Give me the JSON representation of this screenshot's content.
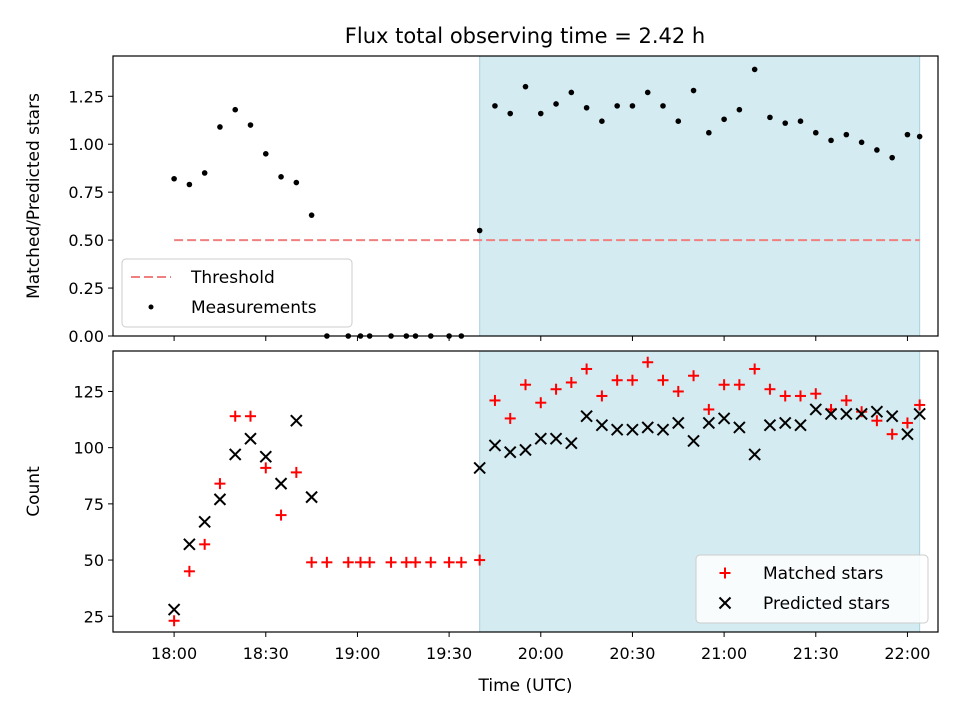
{
  "title": "Flux total observing time = 2.42 h",
  "colors": {
    "shade": "#d4ebf1",
    "shade_edge": "#a9d3e0",
    "threshold": "#f08080",
    "measurements": "#000000",
    "matched": "#ff0000",
    "predicted": "#000000"
  },
  "chart_data": [
    {
      "type": "scatter",
      "panel": "top",
      "ylabel": "Matched/Predicted stars",
      "ylim": [
        0,
        1.46
      ],
      "yticks": [
        0,
        0.25,
        0.5,
        0.75,
        1.0,
        1.25
      ],
      "ytick_labels": [
        "0.00",
        "0.25",
        "0.50",
        "0.75",
        "1.00",
        "1.25"
      ],
      "xlim": [
        "17:40",
        "22:10"
      ],
      "xticks": [
        "18:00",
        "18:30",
        "19:00",
        "19:30",
        "20:00",
        "20:30",
        "21:00",
        "21:30",
        "22:00"
      ],
      "shaded_region": [
        "19:40",
        "22:04"
      ],
      "legend_position": "lower-left",
      "threshold": {
        "name": "Threshold",
        "value": 0.5,
        "from": "18:00",
        "to": "22:04"
      },
      "series": [
        {
          "name": "Measurements",
          "marker": "dot",
          "points": [
            [
              "18:00",
              0.82
            ],
            [
              "18:05",
              0.79
            ],
            [
              "18:10",
              0.85
            ],
            [
              "18:15",
              1.09
            ],
            [
              "18:20",
              1.18
            ],
            [
              "18:25",
              1.1
            ],
            [
              "18:30",
              0.95
            ],
            [
              "18:35",
              0.83
            ],
            [
              "18:40",
              0.8
            ],
            [
              "18:45",
              0.63
            ],
            [
              "18:50",
              0.0
            ],
            [
              "18:57",
              0.0
            ],
            [
              "19:01",
              0.0
            ],
            [
              "19:04",
              0.0
            ],
            [
              "19:11",
              0.0
            ],
            [
              "19:16",
              0.0
            ],
            [
              "19:19",
              0.0
            ],
            [
              "19:24",
              0.0
            ],
            [
              "19:30",
              0.0
            ],
            [
              "19:34",
              0.0
            ],
            [
              "19:40",
              0.55
            ],
            [
              "19:45",
              1.2
            ],
            [
              "19:50",
              1.16
            ],
            [
              "19:55",
              1.3
            ],
            [
              "20:00",
              1.16
            ],
            [
              "20:05",
              1.21
            ],
            [
              "20:10",
              1.27
            ],
            [
              "20:15",
              1.19
            ],
            [
              "20:20",
              1.12
            ],
            [
              "20:25",
              1.2
            ],
            [
              "20:30",
              1.2
            ],
            [
              "20:35",
              1.27
            ],
            [
              "20:40",
              1.2
            ],
            [
              "20:45",
              1.12
            ],
            [
              "20:50",
              1.28
            ],
            [
              "20:55",
              1.06
            ],
            [
              "21:00",
              1.13
            ],
            [
              "21:05",
              1.18
            ],
            [
              "21:10",
              1.39
            ],
            [
              "21:15",
              1.14
            ],
            [
              "21:20",
              1.11
            ],
            [
              "21:25",
              1.12
            ],
            [
              "21:30",
              1.06
            ],
            [
              "21:35",
              1.02
            ],
            [
              "21:40",
              1.05
            ],
            [
              "21:45",
              1.01
            ],
            [
              "21:50",
              0.97
            ],
            [
              "21:55",
              0.93
            ],
            [
              "22:00",
              1.05
            ],
            [
              "22:04",
              1.04
            ]
          ]
        }
      ]
    },
    {
      "type": "scatter",
      "panel": "bottom",
      "ylabel": "Count",
      "xlabel": "Time (UTC)",
      "ylim": [
        18,
        143
      ],
      "yticks": [
        25,
        50,
        75,
        100,
        125
      ],
      "ytick_labels": [
        "25",
        "50",
        "75",
        "100",
        "125"
      ],
      "xlim": [
        "17:40",
        "22:10"
      ],
      "xticks": [
        "18:00",
        "18:30",
        "19:00",
        "19:30",
        "20:00",
        "20:30",
        "21:00",
        "21:30",
        "22:00"
      ],
      "shaded_region": [
        "19:40",
        "22:04"
      ],
      "legend_position": "lower-right",
      "series": [
        {
          "name": "Matched stars",
          "marker": "plus",
          "points": [
            [
              "18:00",
              23
            ],
            [
              "18:05",
              45
            ],
            [
              "18:10",
              57
            ],
            [
              "18:15",
              84
            ],
            [
              "18:20",
              114
            ],
            [
              "18:25",
              114
            ],
            [
              "18:30",
              91
            ],
            [
              "18:35",
              70
            ],
            [
              "18:40",
              89
            ],
            [
              "18:45",
              49
            ],
            [
              "18:50",
              49
            ],
            [
              "18:57",
              49
            ],
            [
              "19:01",
              49
            ],
            [
              "19:04",
              49
            ],
            [
              "19:11",
              49
            ],
            [
              "19:16",
              49
            ],
            [
              "19:19",
              49
            ],
            [
              "19:24",
              49
            ],
            [
              "19:30",
              49
            ],
            [
              "19:34",
              49
            ],
            [
              "19:40",
              50
            ],
            [
              "19:45",
              121
            ],
            [
              "19:50",
              113
            ],
            [
              "19:55",
              128
            ],
            [
              "20:00",
              120
            ],
            [
              "20:05",
              126
            ],
            [
              "20:10",
              129
            ],
            [
              "20:15",
              135
            ],
            [
              "20:20",
              123
            ],
            [
              "20:25",
              130
            ],
            [
              "20:30",
              130
            ],
            [
              "20:35",
              138
            ],
            [
              "20:40",
              130
            ],
            [
              "20:45",
              125
            ],
            [
              "20:50",
              132
            ],
            [
              "20:55",
              117
            ],
            [
              "21:00",
              128
            ],
            [
              "21:05",
              128
            ],
            [
              "21:10",
              135
            ],
            [
              "21:15",
              126
            ],
            [
              "21:20",
              123
            ],
            [
              "21:25",
              123
            ],
            [
              "21:30",
              124
            ],
            [
              "21:35",
              117
            ],
            [
              "21:40",
              121
            ],
            [
              "21:45",
              116
            ],
            [
              "21:50",
              112
            ],
            [
              "21:55",
              106
            ],
            [
              "22:00",
              111
            ],
            [
              "22:04",
              119
            ]
          ]
        },
        {
          "name": "Predicted stars",
          "marker": "x",
          "points": [
            [
              "18:00",
              28
            ],
            [
              "18:05",
              57
            ],
            [
              "18:10",
              67
            ],
            [
              "18:15",
              77
            ],
            [
              "18:20",
              97
            ],
            [
              "18:25",
              104
            ],
            [
              "18:30",
              96
            ],
            [
              "18:35",
              84
            ],
            [
              "18:40",
              112
            ],
            [
              "18:45",
              78
            ],
            [
              "19:40",
              91
            ],
            [
              "19:45",
              101
            ],
            [
              "19:50",
              98
            ],
            [
              "19:55",
              99
            ],
            [
              "20:00",
              104
            ],
            [
              "20:05",
              104
            ],
            [
              "20:10",
              102
            ],
            [
              "20:15",
              114
            ],
            [
              "20:20",
              110
            ],
            [
              "20:25",
              108
            ],
            [
              "20:30",
              108
            ],
            [
              "20:35",
              109
            ],
            [
              "20:40",
              108
            ],
            [
              "20:45",
              111
            ],
            [
              "20:50",
              103
            ],
            [
              "20:55",
              111
            ],
            [
              "21:00",
              113
            ],
            [
              "21:05",
              109
            ],
            [
              "21:10",
              97
            ],
            [
              "21:15",
              110
            ],
            [
              "21:20",
              111
            ],
            [
              "21:25",
              110
            ],
            [
              "21:30",
              117
            ],
            [
              "21:35",
              115
            ],
            [
              "21:40",
              115
            ],
            [
              "21:45",
              115
            ],
            [
              "21:50",
              116
            ],
            [
              "21:55",
              114
            ],
            [
              "22:00",
              106
            ],
            [
              "22:04",
              115
            ]
          ]
        }
      ]
    }
  ]
}
